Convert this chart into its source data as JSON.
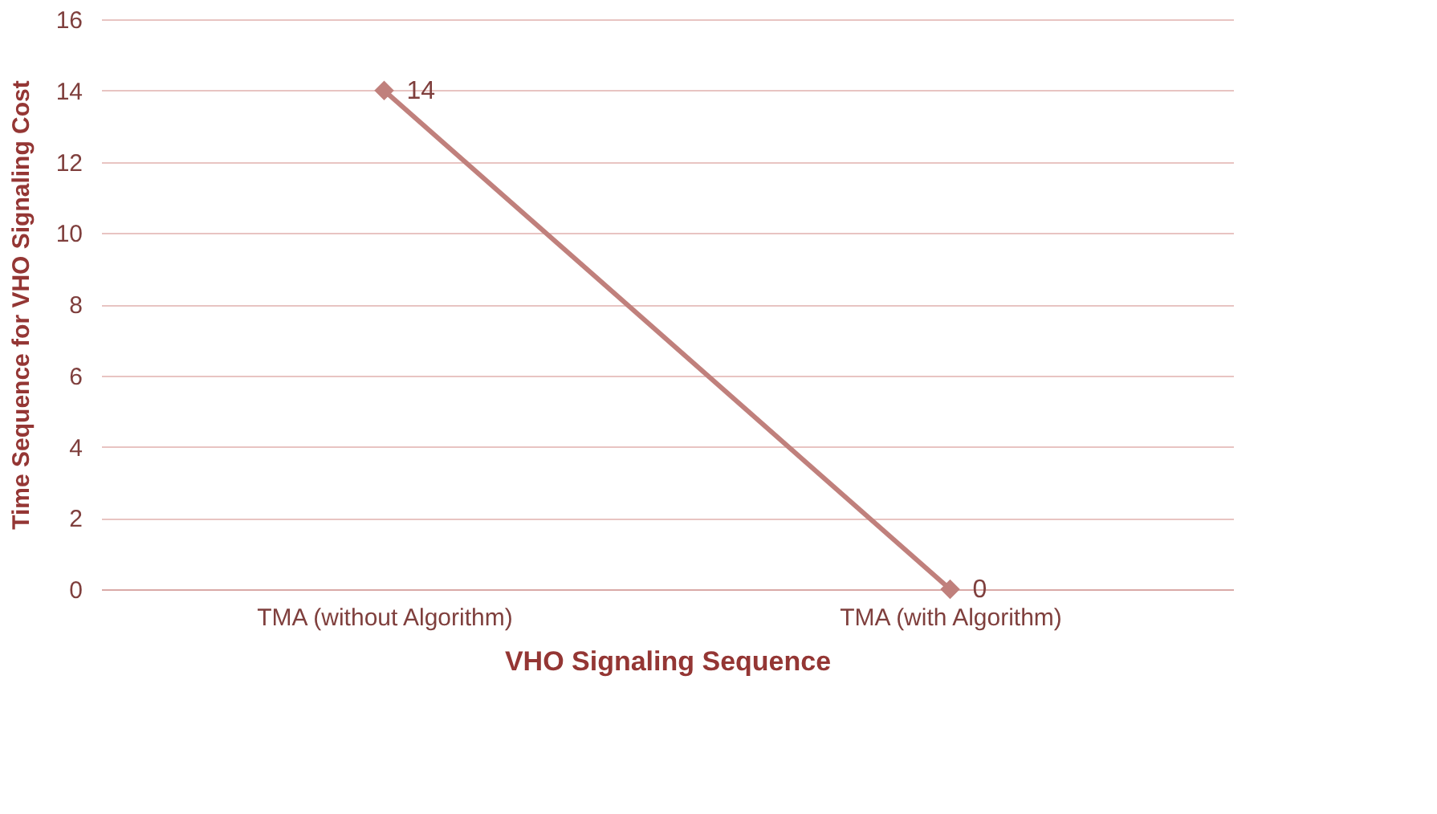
{
  "chart_data": {
    "type": "line",
    "xlabel": "VHO Signaling Sequence",
    "ylabel": "Time Sequence for VHO Signaling Cost",
    "categories": [
      "TMA (without Algorithm)",
      "TMA (with Algorithm)"
    ],
    "series": [
      {
        "color": "#c0807c",
        "values": [
          14,
          0
        ]
      }
    ],
    "ylim": [
      0,
      16
    ],
    "yticks": [
      0,
      2,
      4,
      6,
      8,
      10,
      12,
      14,
      16
    ],
    "grid": "y",
    "marker": "diamond",
    "line_style": "solid",
    "data_labels": true,
    "legend": false
  }
}
